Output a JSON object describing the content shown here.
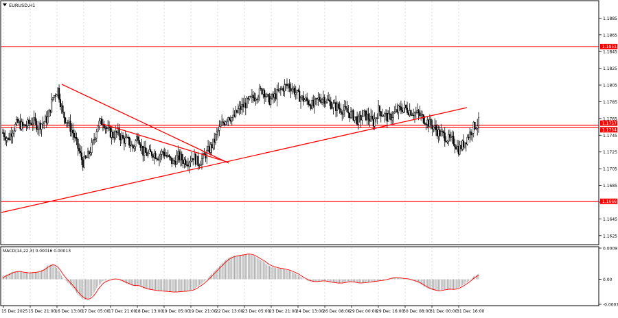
{
  "window": {
    "title": "EURUSD,H1",
    "menu_icon": "triangle-down-icon"
  },
  "price_axis": {
    "ticks": [
      "1.1885",
      "1.1865",
      "1.1845",
      "1.1825",
      "1.1805",
      "1.1785",
      "1.1765",
      "1.1745",
      "1.1725",
      "1.1705",
      "1.1685",
      "1.1665",
      "1.1645",
      "1.1625"
    ],
    "range": [
      1.1615,
      1.1905
    ]
  },
  "levels": [
    {
      "label": "1.1851",
      "value": 1.1851,
      "color": "#ff0000"
    },
    {
      "label": "1.1757",
      "value": 1.1757,
      "color": "#ff0000"
    },
    {
      "label": "1.1754",
      "value": 1.1754,
      "color": "#ff0000"
    },
    {
      "label": "1.1666",
      "value": 1.1666,
      "color": "#ff0000"
    }
  ],
  "macd": {
    "title": "MACD(14,22,3) 0.00016 0.00013",
    "ticks": [
      "0.00091",
      "0.00",
      "-0.00073"
    ],
    "range": [
      -0.00073,
      0.00091
    ]
  },
  "time_axis": {
    "labels": [
      "15 Dec 2025",
      "15 Dec 21:00",
      "16 Dec 13:00",
      "17 Dec 05:00",
      "17 Dec 21:00",
      "18 Dec 13:00",
      "19 Dec 05:00",
      "19 Dec 21:00",
      "22 Dec 13:00",
      "23 Dec 05:00",
      "23 Dec 21:00",
      "24 Dec 13:00",
      "26 Dec 08:00",
      "29 Dec 00:00",
      "29 Dec 16:00",
      "30 Dec 08:00",
      "31 Dec 00:00",
      "31 Dec 16:00"
    ]
  },
  "colors": {
    "candles": "#000000",
    "lines": "#ff0000",
    "grid": "#c0c0c0",
    "histogram": "#a0a0a0",
    "signal": "#ff0000",
    "level_label_bg": "#ff0000",
    "level_label_text": "#ffffff"
  },
  "chart_data": {
    "type": "candlestick",
    "symbol": "EURUSD",
    "timeframe": "H1",
    "close_path": [
      1.1748,
      1.174,
      1.1752,
      1.176,
      1.1755,
      1.1758,
      1.1762,
      1.1756,
      1.176,
      1.1765,
      1.179,
      1.18,
      1.177,
      1.176,
      1.1748,
      1.173,
      1.1712,
      1.172,
      1.1735,
      1.1758,
      1.1762,
      1.175,
      1.1745,
      1.1748,
      1.174,
      1.1738,
      1.173,
      1.1745,
      1.1725,
      1.1722,
      1.1724,
      1.172,
      1.1725,
      1.1718,
      1.1712,
      1.172,
      1.1715,
      1.1714,
      1.172,
      1.1712,
      1.1718,
      1.1726,
      1.1735,
      1.175,
      1.176,
      1.1768,
      1.1765,
      1.1775,
      1.178,
      1.1785,
      1.179,
      1.1795,
      1.18,
      1.1786,
      1.179,
      1.1796,
      1.1802,
      1.1805,
      1.18,
      1.1792,
      1.1788,
      1.1785,
      1.178,
      1.1788,
      1.179,
      1.1785,
      1.178,
      1.1778,
      1.1775,
      1.1772,
      1.1768,
      1.1762,
      1.177,
      1.1766,
      1.176,
      1.1775,
      1.177,
      1.1765,
      1.177,
      1.1775,
      1.1778,
      1.1775,
      1.1772,
      1.177,
      1.1765,
      1.176,
      1.1755,
      1.1748,
      1.1745,
      1.174,
      1.1738,
      1.1728,
      1.1735,
      1.1745,
      1.1755,
      1.176
    ],
    "macd_hist_path": [
      0.0001,
      0.00015,
      0.00022,
      0.00024,
      0.0002,
      0.00018,
      0.0002,
      0.00022,
      0.00028,
      0.0004,
      0.00045,
      0.0003,
      5e-05,
      -0.0001,
      -0.00025,
      -0.00045,
      -0.00058,
      -0.0006,
      -0.00045,
      -0.0002,
      -5e-05,
      -2e-05,
      2e-05,
      0.0,
      -8e-05,
      -0.00014,
      -0.0002,
      -0.00018,
      -0.00026,
      -0.0003,
      -0.00032,
      -0.00034,
      -0.00035,
      -0.00036,
      -0.00038,
      -0.00036,
      -0.00035,
      -0.00034,
      -0.0003,
      -0.0002,
      -0.0001,
      5e-05,
      0.0002,
      0.00035,
      0.0005,
      0.00062,
      0.00068,
      0.0007,
      0.00072,
      0.00075,
      0.0007,
      0.0006,
      0.00052,
      0.0004,
      0.00035,
      0.00032,
      0.0003,
      0.00026,
      0.0002,
      0.00012,
      2e-05,
      -5e-05,
      -8e-05,
      -6e-05,
      -4e-05,
      -8e-05,
      -0.0001,
      -0.00012,
      -0.0001,
      -6e-05,
      -8e-05,
      -0.00012,
      -0.0001,
      -8e-05,
      -6e-05,
      -4e-05,
      -2e-05,
      2e-05,
      6e-05,
      4e-05,
      2e-05,
      0.0,
      -5e-05,
      -0.0001,
      -0.0002,
      -0.00028,
      -0.00032,
      -0.00035,
      -0.0003,
      -0.00028,
      -0.0003,
      -0.00025,
      -0.00015,
      -5e-05,
      8e-05,
      0.00016
    ]
  }
}
